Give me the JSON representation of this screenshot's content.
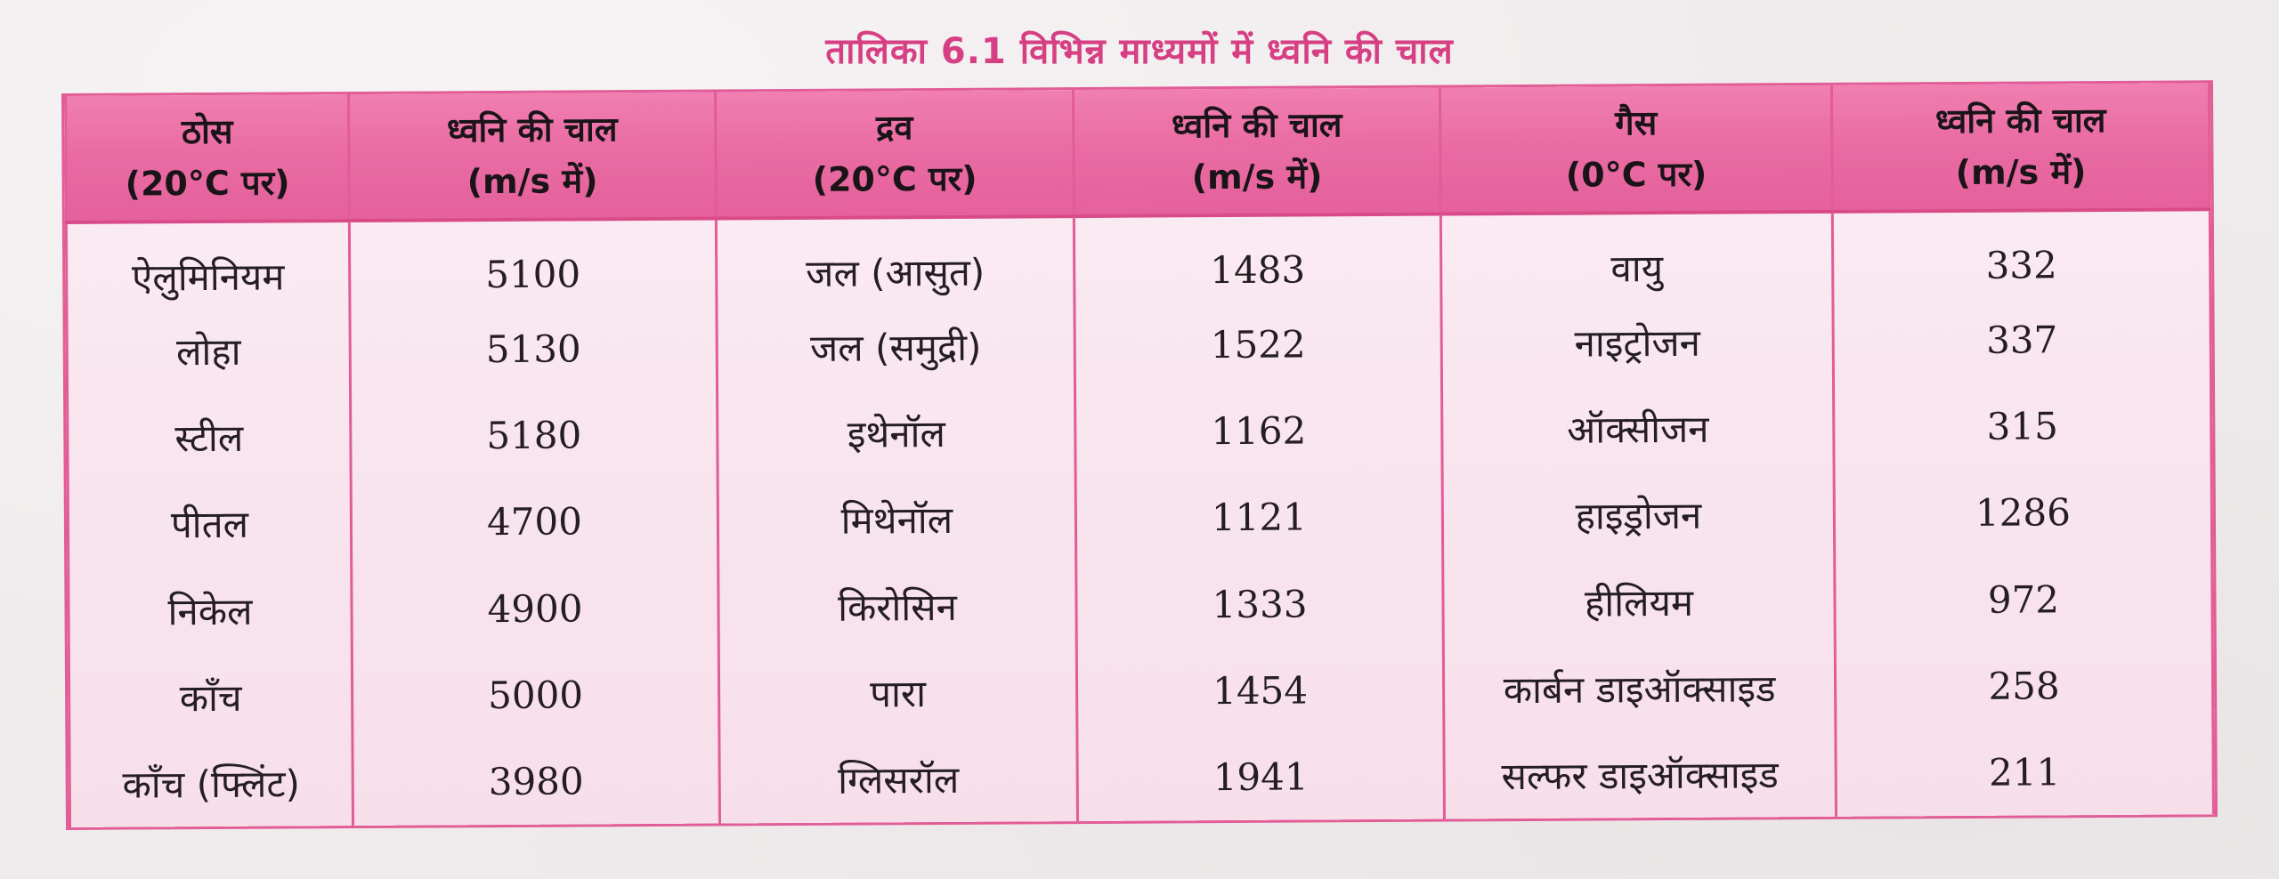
{
  "caption": "तालिका 6.1 विभिन्न माध्यमों में ध्वनि की चाल",
  "headers": [
    {
      "line1": "ठोस",
      "line2": "(20°C पर)"
    },
    {
      "line1": "ध्वनि की चाल",
      "line2": "(m/s में)"
    },
    {
      "line1": "द्रव",
      "line2": "(20°C पर)"
    },
    {
      "line1": "ध्वनि की चाल",
      "line2": "(m/s में)"
    },
    {
      "line1": "गैस",
      "line2": "(0°C पर)"
    },
    {
      "line1": "ध्वनि की चाल",
      "line2": "(m/s में)"
    }
  ],
  "rows": [
    [
      "ऐलुमिनियम",
      "5100",
      "जल (आसुत)",
      "1483",
      "वायु",
      "332"
    ],
    [
      "लोहा",
      "5130",
      "जल (समुद्री)",
      "1522",
      "नाइट्रोजन",
      "337"
    ],
    [
      "स्टील",
      "5180",
      "इथेनॉल",
      "1162",
      "ऑक्सीजन",
      "315"
    ],
    [
      "पीतल",
      "4700",
      "मिथेनॉल",
      "1121",
      "हाइड्रोजन",
      "1286"
    ],
    [
      "निकेल",
      "4900",
      "किरोसिन",
      "1333",
      "हीलियम",
      "972"
    ],
    [
      "काँच",
      "5000",
      "पारा",
      "1454",
      "कार्बन डाइऑक्साइड",
      "258"
    ],
    [
      "काँच (फ्लिंट)",
      "3980",
      "ग्लिसरॉल",
      "1941",
      "सल्फर डाइऑक्साइड",
      "211"
    ]
  ]
}
